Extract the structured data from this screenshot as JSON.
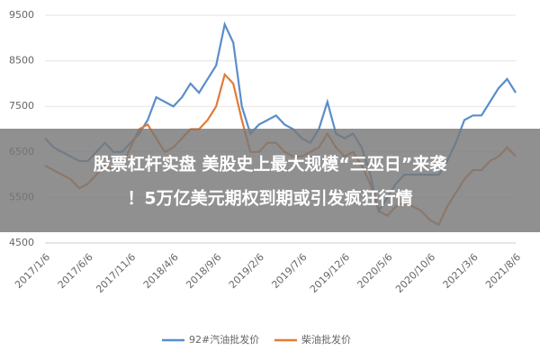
{
  "chart_data": {
    "type": "line",
    "categories": [
      "2017/1/6",
      null,
      null,
      null,
      null,
      "2017/6/6",
      null,
      null,
      null,
      null,
      "2017/11/6",
      null,
      null,
      null,
      null,
      "2018/4/6",
      null,
      null,
      null,
      null,
      "2018/9/6",
      null,
      null,
      null,
      null,
      "2019/2/6",
      null,
      null,
      null,
      null,
      "2019/7/6",
      null,
      null,
      null,
      null,
      "2019/12/6",
      null,
      null,
      null,
      null,
      "2020/5/6",
      null,
      null,
      null,
      null,
      "2020/10/6",
      null,
      null,
      null,
      null,
      "2021/3/6",
      null,
      null,
      null,
      null,
      "2021/8/6"
    ],
    "series": [
      {
        "name": "92#汽油批发价",
        "color": "#5b8ec9",
        "values": [
          6800,
          6600,
          6500,
          6400,
          6300,
          6300,
          6500,
          6700,
          6500,
          6500,
          6700,
          6900,
          7200,
          7700,
          7600,
          7500,
          7700,
          8000,
          7800,
          8100,
          8400,
          9300,
          8900,
          7500,
          6900,
          7100,
          7200,
          7300,
          7100,
          7000,
          6800,
          6700,
          7000,
          7600,
          6900,
          6800,
          6900,
          6600,
          6000,
          5200,
          5500,
          5800,
          6000,
          6000,
          6000,
          6000,
          6000,
          6300,
          6700,
          7200,
          7300,
          7300,
          7600,
          7900,
          8100,
          7800
        ]
      },
      {
        "name": "柴油批发价",
        "color": "#e07b39",
        "values": [
          6200,
          6100,
          6000,
          5900,
          5700,
          5800,
          6000,
          6200,
          6100,
          6200,
          6600,
          7000,
          7100,
          6800,
          6500,
          6600,
          6800,
          7000,
          7000,
          7200,
          7500,
          8200,
          8000,
          7200,
          6500,
          6500,
          6700,
          6700,
          6500,
          6400,
          6400,
          6500,
          6600,
          6900,
          6600,
          6400,
          6500,
          6200,
          5800,
          5200,
          5100,
          5300,
          5400,
          5300,
          5200,
          5000,
          4900,
          5300,
          5600,
          5900,
          6100,
          6100,
          6300,
          6400,
          6600,
          6400
        ]
      }
    ],
    "ylim": [
      4500,
      9500
    ],
    "yticks": [
      4500,
      5500,
      6500,
      7500,
      8500,
      9500
    ],
    "grid": true,
    "legend": "bottom"
  },
  "banner": {
    "lines": [
      "股票杠杆实盘 美股史上最大规模“三巫日”来袭",
      "！5万亿美元期权到期或引发疯狂行情"
    ]
  }
}
